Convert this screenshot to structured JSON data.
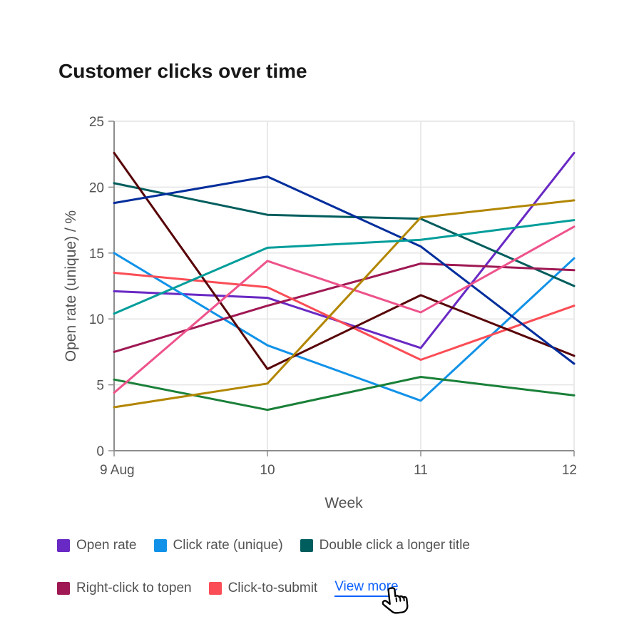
{
  "chart_data": {
    "type": "line",
    "title": "Customer clicks over time",
    "xlabel": "Week",
    "ylabel": "Open rate (unique) / %",
    "x": [
      "9 Aug",
      "10",
      "11",
      "12"
    ],
    "ylim": [
      0,
      25
    ],
    "yticks": [
      0,
      5,
      10,
      15,
      20,
      25
    ],
    "grid": true,
    "legend_position": "bottom",
    "axis_color": "#8d8d8d",
    "gridline_color": "#e4e4e4",
    "series": [
      {
        "name": "Open rate",
        "color": "#6929c4",
        "in_legend": true,
        "values": [
          12.1,
          11.6,
          7.8,
          22.6
        ]
      },
      {
        "name": "Click rate (unique)",
        "color": "#1192e8",
        "in_legend": true,
        "values": [
          15.0,
          8.0,
          3.8,
          14.6
        ]
      },
      {
        "name": "Double click a longer title",
        "color": "#005d5d",
        "in_legend": true,
        "values": [
          20.3,
          17.9,
          17.6,
          12.5
        ]
      },
      {
        "name": "Right-click to topen",
        "color": "#9f1853",
        "in_legend": true,
        "values": [
          7.5,
          11.0,
          14.2,
          13.7
        ]
      },
      {
        "name": "Click-to-submit",
        "color": "#fa4d56",
        "in_legend": true,
        "values": [
          13.5,
          12.4,
          6.9,
          11.0
        ]
      },
      {
        "name": null,
        "color": "#570408",
        "in_legend": false,
        "values": [
          22.6,
          6.2,
          11.8,
          7.2
        ]
      },
      {
        "name": null,
        "color": "#198038",
        "in_legend": false,
        "values": [
          5.4,
          3.1,
          5.6,
          4.2
        ]
      },
      {
        "name": null,
        "color": "#002d9c",
        "in_legend": false,
        "values": [
          18.8,
          20.8,
          15.5,
          6.6
        ]
      },
      {
        "name": null,
        "color": "#ee538b",
        "in_legend": false,
        "values": [
          4.4,
          14.4,
          10.5,
          17.0
        ]
      },
      {
        "name": null,
        "color": "#b28600",
        "in_legend": false,
        "values": [
          3.3,
          5.1,
          17.7,
          19.0
        ]
      },
      {
        "name": null,
        "color": "#009d9a",
        "in_legend": false,
        "values": [
          10.4,
          15.4,
          16.0,
          17.5
        ]
      }
    ],
    "legend": {
      "view_more_label": "View more"
    }
  }
}
